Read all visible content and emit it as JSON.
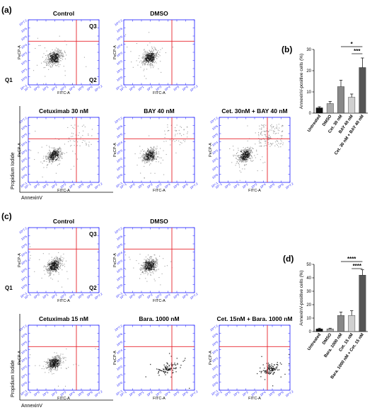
{
  "panel_labels": [
    "(a)",
    "(b)",
    "(c)",
    "(d)"
  ],
  "quadrant_labels": {
    "q1": "Q1",
    "q2": "Q2",
    "q3": "Q3"
  },
  "axes": {
    "flow_x_label": "FITC-A",
    "flow_y_label": "PeCP-A",
    "outer_x_label": "AnnexinV",
    "outer_y_label": "Propidium Iodide",
    "x_ticks": [
      "10^-1",
      "10^0",
      "10^1",
      "10^2",
      "10^3",
      "10^4",
      "10^5",
      "10^6",
      "10^7.2"
    ],
    "y_ticks": [
      "10^-1",
      "10^0",
      "10^1",
      "10^2",
      "10^3",
      "10^4",
      "10^5",
      "10^6",
      "10^7.2"
    ]
  },
  "flow_plots_a": [
    {
      "title": "Control",
      "pattern": "dense"
    },
    {
      "title": "DMSO",
      "pattern": "dense"
    },
    {
      "title": "Cetuximab 30 nM",
      "pattern": "dense_upper"
    },
    {
      "title": "BAY 40 nM",
      "pattern": "dense_upper"
    },
    {
      "title": "Cet. 30nM + BAY 40 nM",
      "pattern": "dense_upper_heavy"
    }
  ],
  "flow_plots_c": [
    {
      "title": "Control",
      "pattern": "dense"
    },
    {
      "title": "DMSO",
      "pattern": "dense"
    },
    {
      "title": "Cetuximab 15 nM",
      "pattern": "dense"
    },
    {
      "title": "Bara. 1000 nM",
      "pattern": "sparse"
    },
    {
      "title": "Cet. 15nM + Bara. 1000 nM",
      "pattern": "sparse_shift"
    }
  ],
  "chart_data": [
    {
      "type": "bar",
      "panel": "(b)",
      "ylabel": "AnnexinV-positive cells (%)",
      "categories": [
        "Untreated",
        "DMSO",
        "Cet. 30 nM",
        "BAY 40 nM",
        "Cet. 30 nM + BAY 40 nM"
      ],
      "values": [
        2.5,
        4.5,
        12.5,
        7.5,
        21.5
      ],
      "errors": [
        0.5,
        1.0,
        3.0,
        1.5,
        4.5
      ],
      "bar_colors": [
        "#111111",
        "#aaaaaa",
        "#888888",
        "#d0d0d0",
        "#555555"
      ],
      "ylim": [
        0,
        30
      ],
      "yticks": [
        0,
        10,
        20,
        30
      ],
      "significance": [
        {
          "from": 2,
          "to": 4,
          "label": "*"
        },
        {
          "from": 3,
          "to": 4,
          "label": "***"
        }
      ]
    },
    {
      "type": "bar",
      "panel": "(d)",
      "ylabel": "AnnexinV-positive cells (%)",
      "categories": [
        "Untreated",
        "DMSO",
        "Bara. 1000 nM",
        "Cet. 15 nM",
        "Bara. 1000 nM + Cet. 15 nM"
      ],
      "values": [
        2,
        2,
        12,
        12,
        42
      ],
      "errors": [
        0.5,
        0.5,
        2.5,
        3.5,
        4.0
      ],
      "bar_colors": [
        "#111111",
        "#aaaaaa",
        "#888888",
        "#d0d0d0",
        "#555555"
      ],
      "ylim": [
        0,
        50
      ],
      "yticks": [
        0,
        10,
        20,
        30,
        40,
        50
      ],
      "significance": [
        {
          "from": 2,
          "to": 4,
          "label": "****"
        },
        {
          "from": 3,
          "to": 4,
          "label": "****"
        }
      ]
    }
  ]
}
